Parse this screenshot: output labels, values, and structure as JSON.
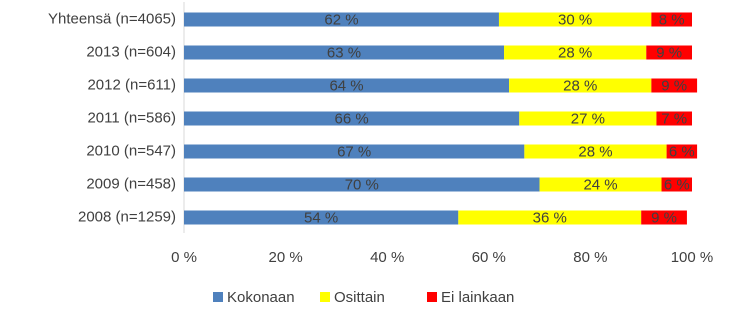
{
  "chart_data": {
    "type": "stacked_bar_horizontal",
    "categories": [
      "Yhteensä (n=4065)",
      "2013 (n=604)",
      "2012 (n=611)",
      "2011 (n=586)",
      "2010 (n=547)",
      "2009 (n=458)",
      "2008 (n=1259)"
    ],
    "series": [
      {
        "name": "Kokonaan",
        "color": "#4f81bd",
        "values": [
          62,
          63,
          64,
          66,
          67,
          70,
          54
        ],
        "value_labels": [
          "62 %",
          "63 %",
          "64 %",
          "66 %",
          "67 %",
          "70 %",
          "54 %"
        ]
      },
      {
        "name": "Osittain",
        "color": "#ffff00",
        "values": [
          30,
          28,
          28,
          27,
          28,
          24,
          36
        ],
        "value_labels": [
          "30 %",
          "28 %",
          "28 %",
          "27 %",
          "28 %",
          "24 %",
          "36 %"
        ]
      },
      {
        "name": "Ei lainkaan",
        "color": "#ff0000",
        "values": [
          8,
          9,
          9,
          7,
          6,
          6,
          9
        ],
        "value_labels": [
          "8 %",
          "9 %",
          "9 %",
          "7 %",
          "6 %",
          "6 %",
          "9 %"
        ]
      }
    ],
    "xlim": [
      0,
      100
    ],
    "xticks": [
      {
        "value": 0,
        "label": "0 %"
      },
      {
        "value": 20,
        "label": "20 %"
      },
      {
        "value": 40,
        "label": "40 %"
      },
      {
        "value": 60,
        "label": "60 %"
      },
      {
        "value": 80,
        "label": "80 %"
      },
      {
        "value": 100,
        "label": "100 %"
      }
    ],
    "legend": "bottom"
  }
}
